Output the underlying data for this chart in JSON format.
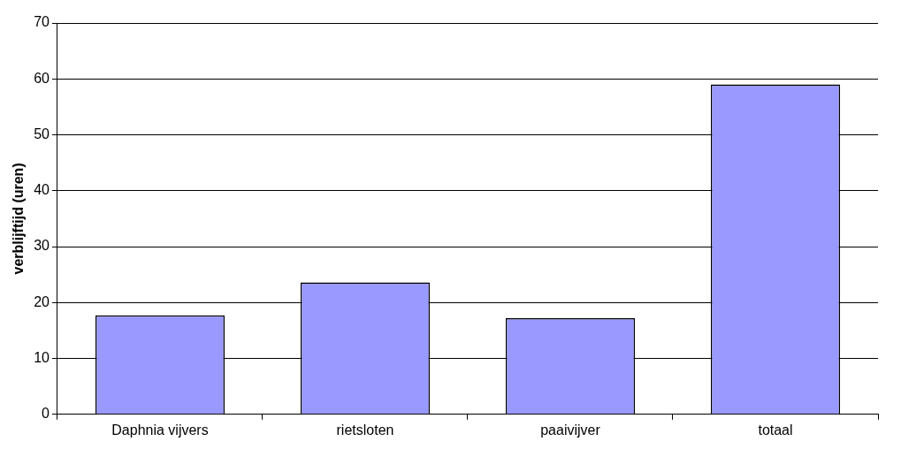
{
  "chart_data": {
    "type": "bar",
    "ylabel": "verblijftijd (uren)",
    "categories": [
      "Daphnia vijvers",
      "rietsloten",
      "paaivijver",
      "totaal"
    ],
    "series": [
      {
        "color": "#9999ff",
        "values": [
          17.7,
          23.6,
          17.2,
          59.0
        ]
      }
    ],
    "ylim": [
      0,
      70
    ],
    "yticks": [
      0,
      10,
      20,
      30,
      40,
      50,
      60,
      70
    ],
    "grid": "y",
    "legend": false
  }
}
